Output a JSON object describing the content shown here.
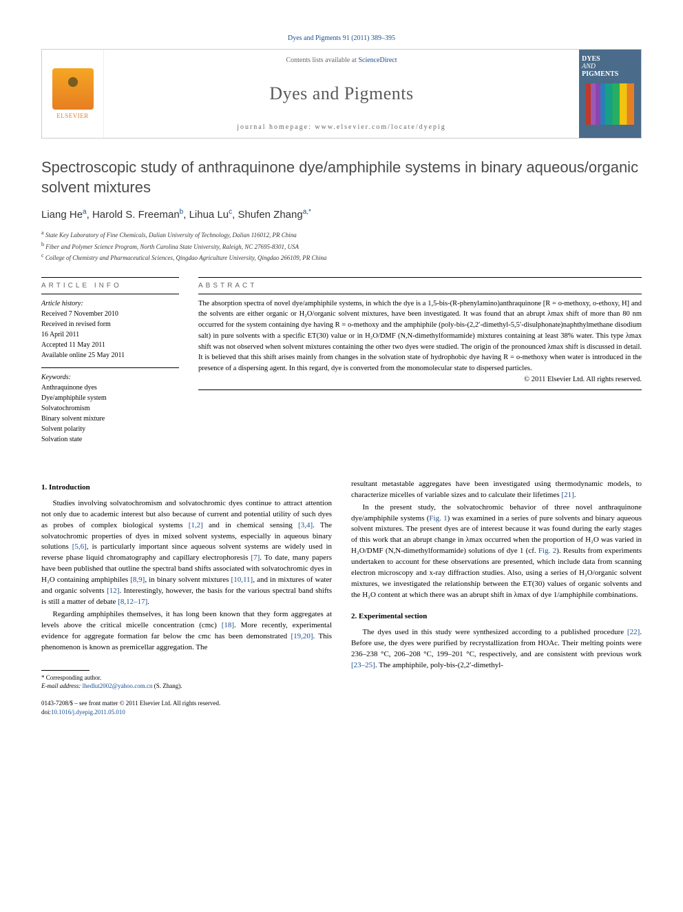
{
  "citation": "Dyes and Pigments 91 (2011) 389–395",
  "header": {
    "contents_prefix": "Contents lists available at ",
    "contents_link": "ScienceDirect",
    "journal": "Dyes and Pigments",
    "homepage_prefix": "journal homepage: ",
    "homepage": "www.elsevier.com/locate/dyepig",
    "elsevier": "ELSEVIER",
    "cover_title_1": "DYES",
    "cover_title_2": "AND",
    "cover_title_3": "PIGMENTS"
  },
  "title": "Spectroscopic study of anthraquinone dye/amphiphile systems in binary aqueous/organic solvent mixtures",
  "authors_html": "Liang He<sup>a</sup>, Harold S. Freeman<sup>b</sup>, Lihua Lu<sup>c</sup>, Shufen Zhang<sup>a,*</sup>",
  "affiliations": [
    {
      "sup": "a",
      "text": "State Key Laboratory of Fine Chemicals, Dalian University of Technology, Dalian 116012, PR China"
    },
    {
      "sup": "b",
      "text": "Fiber and Polymer Science Program, North Carolina State University, Raleigh, NC 27695-8301, USA"
    },
    {
      "sup": "c",
      "text": "College of Chemistry and Pharmaceutical Sciences, Qingdao Agriculture University, Qingdao 266109, PR China"
    }
  ],
  "info": {
    "label_info": "ARTICLE INFO",
    "label_abs": "ABSTRACT",
    "history_label": "Article history:",
    "history": [
      "Received 7 November 2010",
      "Received in revised form",
      "16 April 2011",
      "Accepted 11 May 2011",
      "Available online 25 May 2011"
    ],
    "keywords_label": "Keywords:",
    "keywords": [
      "Anthraquinone dyes",
      "Dye/amphiphile system",
      "Solvatochromism",
      "Binary solvent mixture",
      "Solvent polarity",
      "Solvation state"
    ]
  },
  "abstract": "The absorption spectra of novel dye/amphiphile systems, in which the dye is a 1,5-bis-(R-phenylamino)anthraquinone [R = o-methoxy, o-ethoxy, H] and the solvents are either organic or H₂O/organic solvent mixtures, have been investigated. It was found that an abrupt λmax shift of more than 80 nm occurred for the system containing dye having R = o-methoxy and the amphiphile (poly-bis-(2,2′-dimethyl-5,5′-disulphonate)naphthylmethane disodium salt) in pure solvents with a specific ET(30) value or in H₂O/DMF (N,N-dimethylformamide) mixtures containing at least 38% water. This type λmax shift was not observed when solvent mixtures containing the other two dyes were studied. The origin of the pronounced λmax shift is discussed in detail. It is believed that this shift arises mainly from changes in the solvation state of hydrophobic dye having R = o-methoxy when water is introduced in the presence of a dispersing agent. In this regard, dye is converted from the monomolecular state to dispersed particles.",
  "copyright": "© 2011 Elsevier Ltd. All rights reserved.",
  "sections": {
    "intro_heading": "1. Introduction",
    "intro_p1_a": "Studies involving solvatochromism and solvatochromic dyes continue to attract attention not only due to academic interest but also because of current and potential utility of such dyes as probes of complex biological systems ",
    "intro_p1_r1": "[1,2]",
    "intro_p1_b": " and in chemical sensing ",
    "intro_p1_r2": "[3,4]",
    "intro_p1_c": ". The solvatochromic properties of dyes in mixed solvent systems, especially in aqueous binary solutions ",
    "intro_p1_r3": "[5,6]",
    "intro_p1_d": ", is particularly important since aqueous solvent systems are widely used in reverse phase liquid chromatography and capillary electrophoresis ",
    "intro_p1_r4": "[7]",
    "intro_p1_e": ". To date, many papers have been published that outline the spectral band shifts associated with solvatochromic dyes in H₂O containing amphiphiles ",
    "intro_p1_r5": "[8,9]",
    "intro_p1_f": ", in binary solvent mixtures ",
    "intro_p1_r6": "[10,11]",
    "intro_p1_g": ", and in mixtures of water and organic solvents ",
    "intro_p1_r7": "[12]",
    "intro_p1_h": ". Interestingly, however, the basis for the various spectral band shifts is still a matter of debate ",
    "intro_p1_r8": "[8,12–17]",
    "intro_p1_i": ".",
    "intro_p2_a": "Regarding amphiphiles themselves, it has long been known that they form aggregates at levels above the critical micelle concentration (cmc) ",
    "intro_p2_r1": "[18]",
    "intro_p2_b": ". More recently, experimental evidence for aggregate formation far below the cmc has been demonstrated ",
    "intro_p2_r2": "[19,20]",
    "intro_p2_c": ". This phenomenon is known as premicellar aggregation. The",
    "col2_p2_d": "resultant metastable aggregates have been investigated using thermodynamic models, to characterize micelles of variable sizes and to calculate their lifetimes ",
    "col2_p2_r3": "[21]",
    "col2_p2_e": ".",
    "col2_p3_a": "In the present study, the solvatochromic behavior of three novel anthraquinone dye/amphiphile systems (",
    "col2_p3_fig1": "Fig. 1",
    "col2_p3_b": ") was examined in a series of pure solvents and binary aqueous solvent mixtures. The present dyes are of interest because it was found during the early stages of this work that an abrupt change in λmax occurred when the proportion of H₂O was varied in H₂O/DMF (N,N-dimethylformamide) solutions of dye 1 (cf. ",
    "col2_p3_fig2": "Fig. 2",
    "col2_p3_c": "). Results from experiments undertaken to account for these observations are presented, which include data from scanning electron microscopy and x-ray diffraction studies. Also, using a series of H₂O/organic solvent mixtures, we investigated the relationship between the ET(30) values of organic solvents and the H₂O content at which there was an abrupt shift in λmax of dye 1/amphiphile combinations.",
    "exp_heading": "2. Experimental section",
    "exp_p1_a": "The dyes used in this study were synthesized according to a published procedure ",
    "exp_p1_r1": "[22]",
    "exp_p1_b": ". Before use, the dyes were purified by recrystallization from HOAc. Their melting points were 236–238 °C, 206–208 °C, 199–201 °C, respectively, and are consistent with previous work ",
    "exp_p1_r2": "[23–25]",
    "exp_p1_c": ". The amphiphile, poly-bis-(2,2′-dimethyl-"
  },
  "footnote": {
    "corr": "* Corresponding author.",
    "email_label": "E-mail address: ",
    "email": "lhedlut2002@yahoo.com.cn",
    "email_suffix": " (S. Zhang)."
  },
  "bottom": {
    "line1": "0143-7208/$ – see front matter © 2011 Elsevier Ltd. All rights reserved.",
    "doi_prefix": "doi:",
    "doi": "10.1016/j.dyepig.2011.05.010"
  },
  "colors": {
    "link": "#1a4d8f",
    "text": "#000000",
    "header_gray": "#5a5a5a",
    "border": "#cccccc"
  },
  "typography": {
    "title_fontsize": 22,
    "body_fontsize": 11,
    "abstract_fontsize": 10.5,
    "journal_fontsize": 26
  }
}
